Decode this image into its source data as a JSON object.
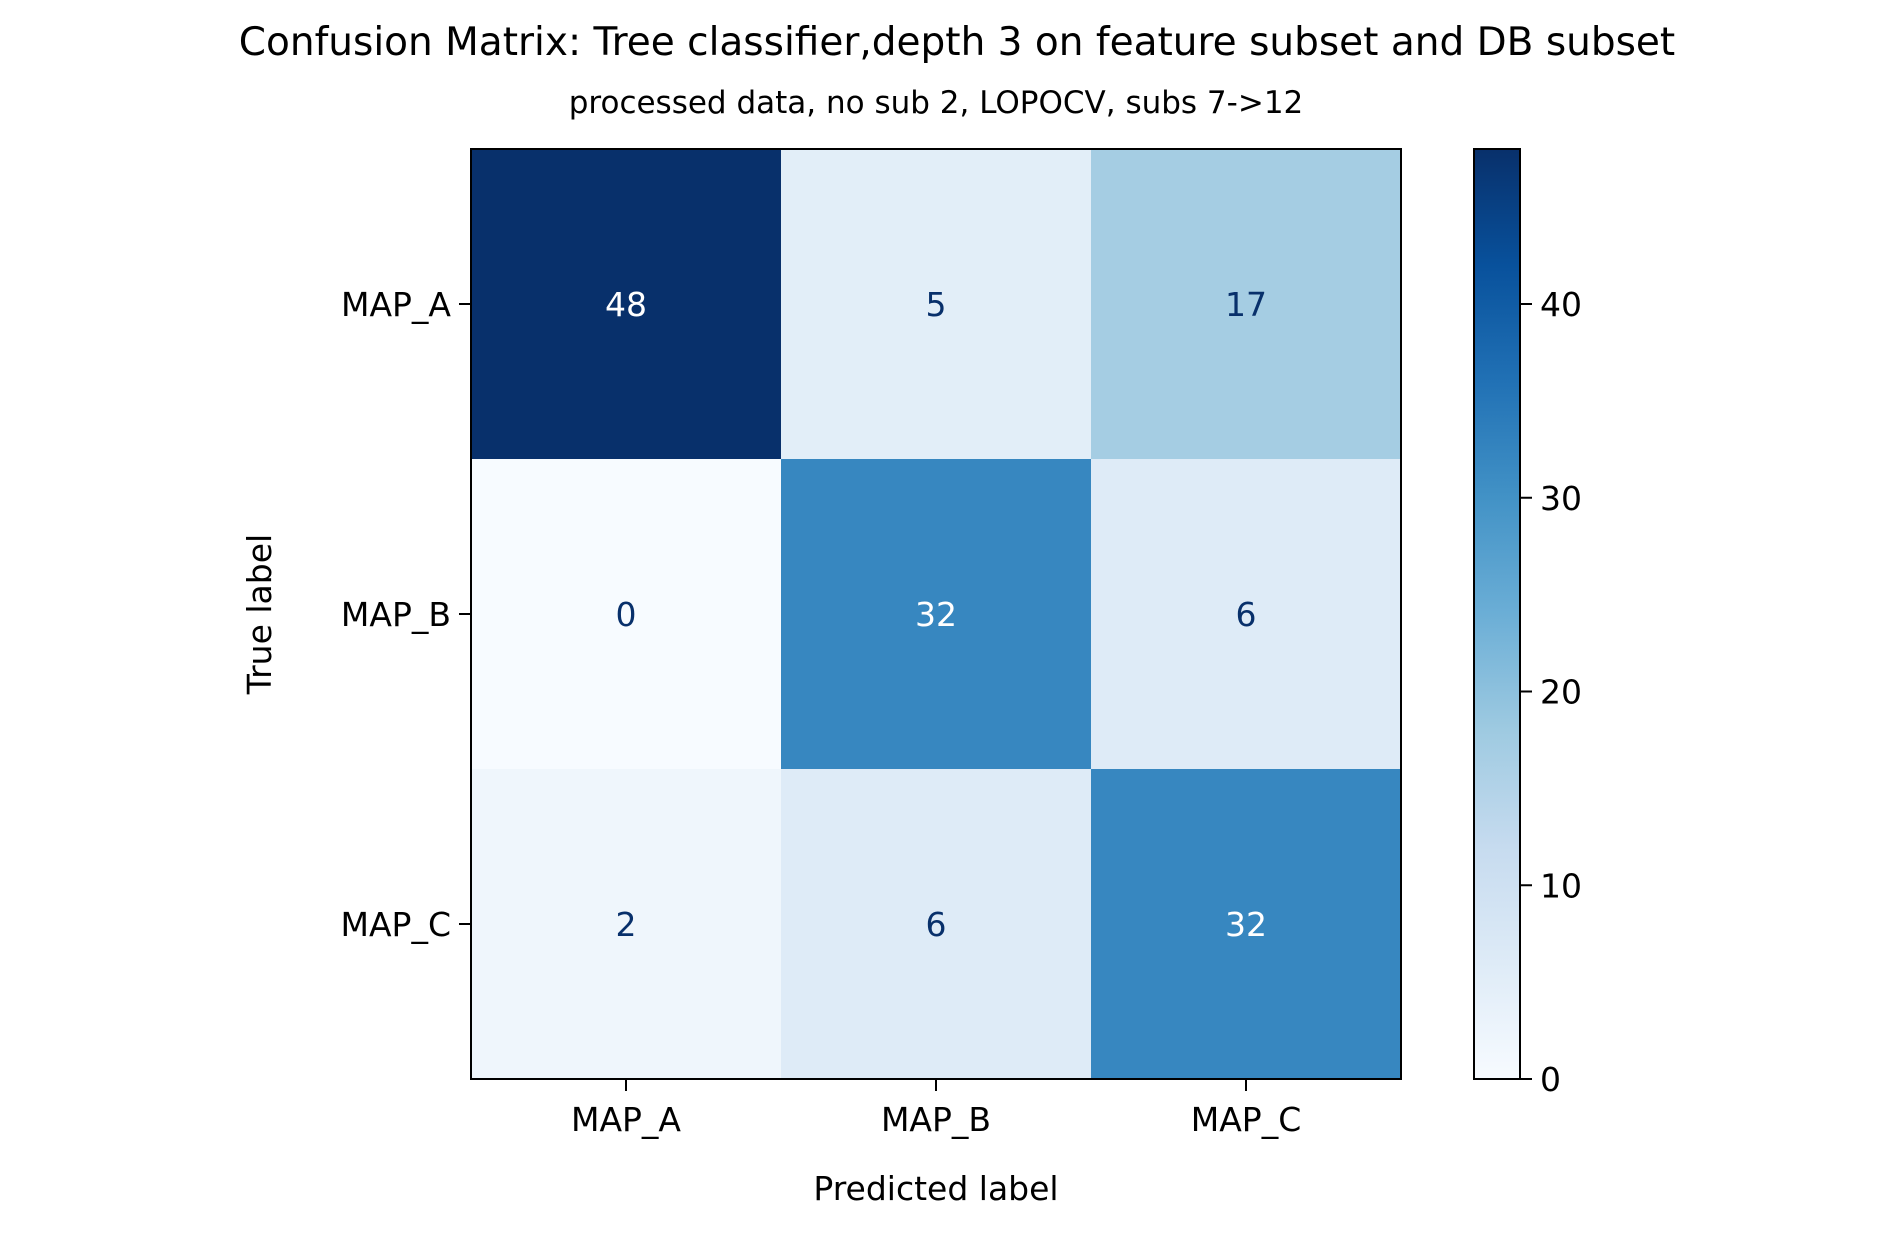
{
  "chart_data": {
    "type": "heatmap",
    "title": "Confusion Matrix: Tree classifier,depth 3 on feature subset and DB subset",
    "subtitle": "processed data, no sub 2, LOPOCV, subs 7->12",
    "xlabel": "Predicted label",
    "ylabel": "True label",
    "x_categories": [
      "MAP_A",
      "MAP_B",
      "MAP_C"
    ],
    "y_categories": [
      "MAP_A",
      "MAP_B",
      "MAP_C"
    ],
    "values": [
      [
        48,
        5,
        17
      ],
      [
        0,
        32,
        6
      ],
      [
        2,
        6,
        32
      ]
    ],
    "colorbar": {
      "vmin": 0,
      "vmax": 48,
      "ticks": [
        0,
        10,
        20,
        30,
        40
      ],
      "colormap": "Blues"
    },
    "text_color_dark": "#08306b",
    "text_color_light": "#ffffff"
  }
}
